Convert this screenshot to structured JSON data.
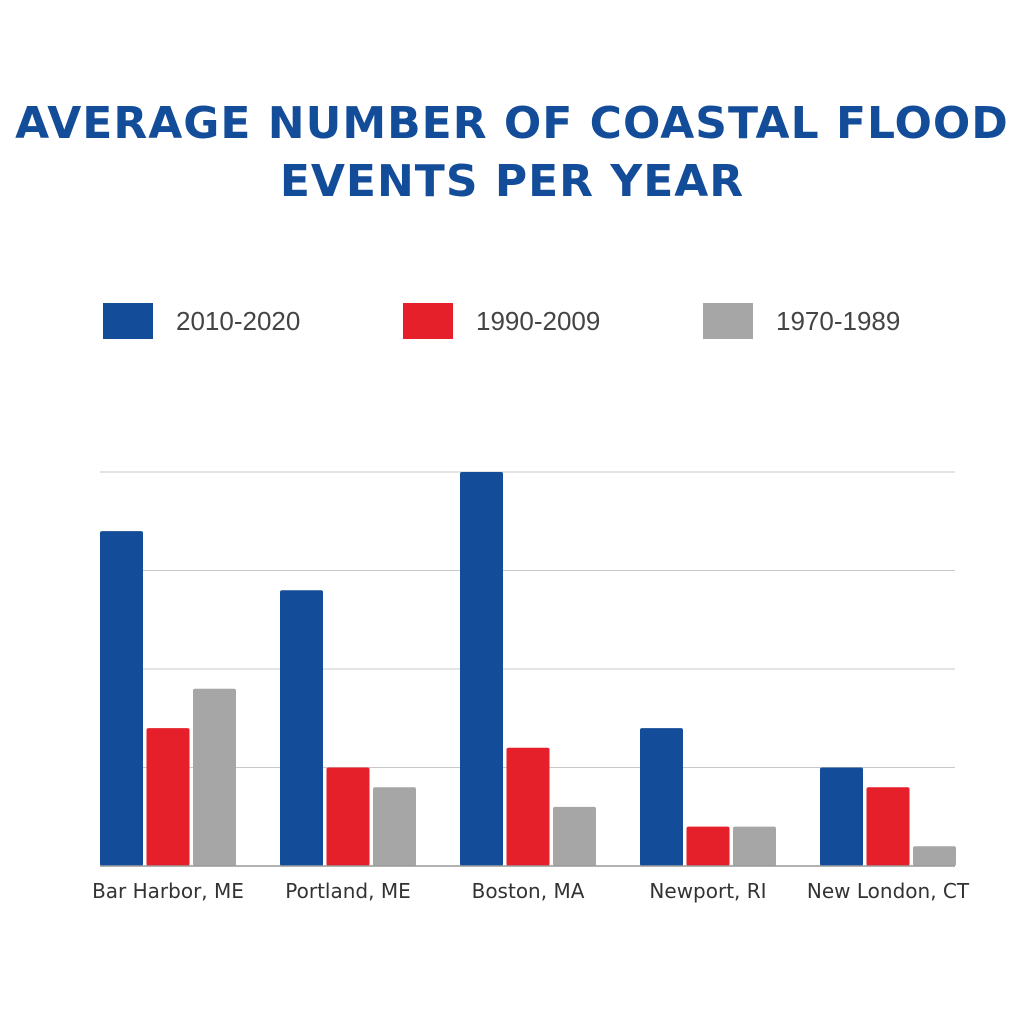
{
  "chart_data": {
    "type": "bar",
    "title": "Average Number of Coastal Flood Events Per Year",
    "xlabel": "",
    "ylabel": "",
    "ylim": [
      0,
      20
    ],
    "grid": true,
    "y_ticks_printed": false,
    "legend_position": "top",
    "categories": [
      "Bar Harbor, ME",
      "Portland, ME",
      "Boston, MA",
      "Newport, RI",
      "New London, CT"
    ],
    "series": [
      {
        "name": "2010-2020",
        "color": "#134c98",
        "values": [
          17,
          14,
          20,
          7,
          5
        ]
      },
      {
        "name": "1990-2009",
        "color": "#e5202a",
        "values": [
          7,
          5,
          6,
          2,
          4
        ]
      },
      {
        "name": "1970-1989",
        "color": "#a6a6a6",
        "values": [
          9,
          4,
          3,
          2,
          1
        ]
      }
    ]
  }
}
